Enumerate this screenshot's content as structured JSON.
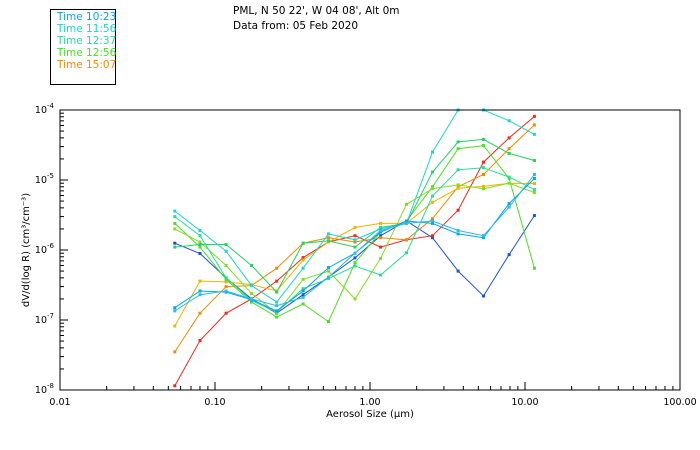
{
  "header": {
    "location": "PML, N 50 22', W 04 08', Alt 0m",
    "date_line": "Data from: 05 Feb 2020"
  },
  "legend": [
    {
      "label": "Time 10:23",
      "color": "#00a8ee"
    },
    {
      "label": "Time 11:56",
      "color": "#1ad6d0"
    },
    {
      "label": "Time 12:37",
      "color": "#22e098"
    },
    {
      "label": "Time 12:56",
      "color": "#48e020"
    },
    {
      "label": "Time 15:07",
      "color": "#f08a00"
    }
  ],
  "chart_data": {
    "type": "line",
    "xscale": "log",
    "yscale": "log",
    "xlim": [
      0.01,
      100
    ],
    "ylim": [
      1e-08,
      0.0001
    ],
    "xlabel": "Aerosol Size (µm)",
    "ylabel": "dV/d(log R) (cm³/cm⁻³)",
    "xticks": [
      {
        "value": 0.01,
        "label": "0.01"
      },
      {
        "value": 0.1,
        "label": "0.10"
      },
      {
        "value": 1,
        "label": "1.00"
      },
      {
        "value": 10,
        "label": "10.00"
      },
      {
        "value": 100,
        "label": "100.00"
      }
    ],
    "yticks": [
      {
        "value": 1e-08,
        "base": "10",
        "exp": "-8"
      },
      {
        "value": 1e-07,
        "base": "10",
        "exp": "-7"
      },
      {
        "value": 1e-06,
        "base": "10",
        "exp": "-6"
      },
      {
        "value": 1e-05,
        "base": "10",
        "exp": "-5"
      },
      {
        "value": 0.0001,
        "base": "10",
        "exp": "-4"
      }
    ],
    "x": [
      0.055,
      0.08,
      0.118,
      0.172,
      0.25,
      0.37,
      0.54,
      0.8,
      1.17,
      1.72,
      2.53,
      3.7,
      5.4,
      7.9,
      11.5
    ],
    "series": [
      {
        "name": "series-dark-blue",
        "color": "#1a4fd8",
        "values": [
          1.25e-06,
          8.9e-07,
          4e-07,
          2e-07,
          1.25e-07,
          2.3e-07,
          4.1e-07,
          7.7e-07,
          1.6e-06,
          2.6e-06,
          1.5e-06,
          5e-07,
          2.2e-07,
          8.6e-07,
          3.1e-06
        ]
      },
      {
        "name": "series-red",
        "color": "#f02818",
        "values": [
          1.15e-08,
          5.1e-08,
          1.25e-07,
          2e-07,
          3.6e-07,
          7.8e-07,
          1.3e-06,
          1.6e-06,
          1.1e-06,
          1.4e-06,
          1.6e-06,
          3.7e-06,
          1.8e-05,
          4e-05,
          8.1e-05
        ]
      },
      {
        "name": "series-orange",
        "color": "#f08a00",
        "values": [
          3.5e-08,
          1.25e-07,
          3e-07,
          3.1e-07,
          5.5e-07,
          1.25e-06,
          1.5e-06,
          1.3e-06,
          1.5e-06,
          1.4e-06,
          2.8e-06,
          8e-06,
          1.2e-05,
          2.8e-05,
          6.1e-05
        ]
      },
      {
        "name": "series-light-orange",
        "color": "#f0b400",
        "values": [
          8.2e-08,
          3.6e-07,
          3.5e-07,
          3.2e-07,
          2.6e-07,
          7.2e-07,
          1.3e-06,
          2.1e-06,
          2.4e-06,
          2.4e-06,
          4.8e-06,
          7.6e-06,
          8.1e-06,
          9e-06,
          8.9e-06
        ]
      },
      {
        "name": "series-green",
        "color": "#48e020",
        "values": [
          2.4e-06,
          1.1e-06,
          3.8e-07,
          1.8e-07,
          1.1e-07,
          1.7e-07,
          9.5e-08,
          6.6e-07,
          1.8e-06,
          2.6e-06,
          8e-06,
          2.8e-05,
          3.1e-05,
          1.05e-05,
          5.5e-07
        ]
      },
      {
        "name": "series-lime",
        "color": "#80e020",
        "values": [
          2e-06,
          1.3e-06,
          6e-07,
          2.4e-07,
          1.25e-07,
          3.8e-07,
          5e-07,
          2e-07,
          7.6e-07,
          4.5e-06,
          7.5e-06,
          8.5e-06,
          7.5e-06,
          9e-06,
          6.6e-06
        ]
      },
      {
        "name": "series-spring-green",
        "color": "#22e098",
        "values": [
          3e-06,
          1.6e-06,
          4e-07,
          1.9e-07,
          1.3e-07,
          2.8e-07,
          3.9e-07,
          5.9e-07,
          4.4e-07,
          9.1e-07,
          5.9e-06,
          1.4e-05,
          1.5e-05,
          1.1e-05,
          7.3e-06
        ]
      },
      {
        "name": "series-bright-green",
        "color": "#22d460",
        "values": [
          1.1e-06,
          1.2e-06,
          1.2e-06,
          6e-07,
          2.5e-07,
          1.25e-06,
          1.35e-06,
          1.1e-06,
          2.1e-06,
          2.4e-06,
          1.3e-05,
          3.5e-05,
          3.8e-05,
          2.4e-05,
          1.9e-05
        ]
      },
      {
        "name": "series-turquoise",
        "color": "#1ad6d0",
        "values": [
          3.6e-06,
          1.9e-06,
          9.6e-07,
          3.1e-07,
          1.8e-07,
          5.5e-07,
          1.7e-06,
          1.4e-06,
          2e-06,
          2.4e-06,
          2.5e-05,
          0.0001,
          0.0001,
          7e-05,
          4.5e-05
        ]
      },
      {
        "name": "series-light-blue",
        "color": "#00a8ee",
        "values": [
          1.5e-07,
          2.6e-07,
          2.5e-07,
          1.95e-07,
          1.35e-07,
          2.6e-07,
          5.6e-07,
          9e-07,
          1.8e-06,
          2.6e-06,
          2.4e-06,
          1.7e-06,
          1.5e-06,
          4.6e-06,
          1.05e-05
        ]
      },
      {
        "name": "series-sky-blue",
        "color": "#2cb8f0",
        "values": [
          1.35e-07,
          2.3e-07,
          2.6e-07,
          2e-07,
          1.6e-07,
          2.1e-07,
          4.1e-07,
          9e-07,
          1.9e-06,
          2.4e-06,
          2.6e-06,
          1.9e-06,
          1.6e-06,
          4.1e-06,
          1.2e-05
        ]
      }
    ]
  }
}
